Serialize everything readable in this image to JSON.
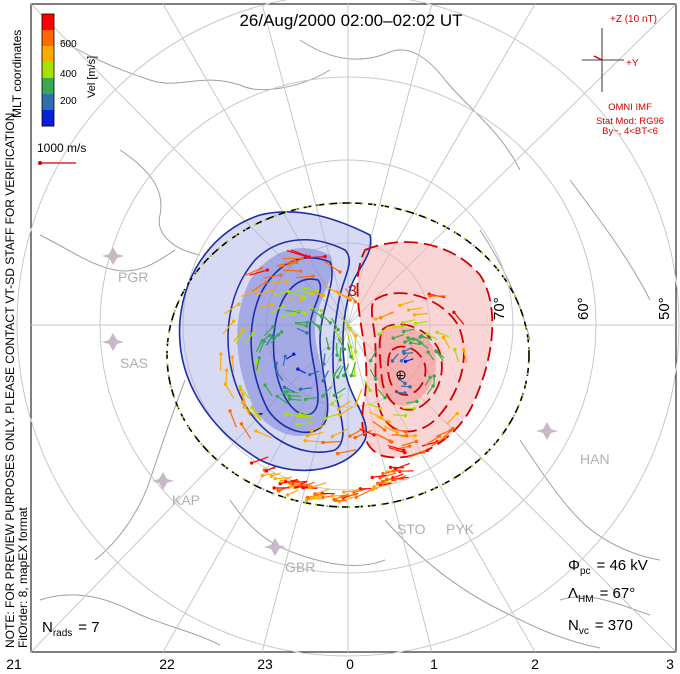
{
  "title": "26/Aug/2000 02:00–02:02 UT",
  "side_note": {
    "line1": "NOTE: FOR PREVIEW PURPOSES ONLY. PLEASE CONTACT VT-SD STAFF FOR VERIFICATION.",
    "line2": "FitOrder: 8, mapEX format"
  },
  "coord_label": "MLT coordinates",
  "colorbar": {
    "label": "Vel [m/s]",
    "ticks": [
      "600",
      "400",
      "200"
    ],
    "colors": [
      "#ff0000",
      "#ff6a00",
      "#ffaa00",
      "#a8e000",
      "#3aa84f",
      "#2f6fb0",
      "#0a1fd8"
    ]
  },
  "scale_vector_label": "1000 m/s",
  "imf": {
    "z_label": "+Z (10 nT)",
    "y_label": "+Y",
    "source": "OMNI IMF",
    "stat_mod": "Stat Mod: RG96",
    "condition": "By−, 4<BT<6",
    "color": "#d40000"
  },
  "lat_labels": [
    "70°",
    "60°",
    "50°"
  ],
  "stations": [
    "PGR",
    "SAS",
    "KAP",
    "GBR",
    "STO",
    "PYK",
    "HAN"
  ],
  "stats": {
    "phi_pc": {
      "sym": "Φ",
      "sub": "pc",
      "value": "= 46 kV"
    },
    "lambda_hm": {
      "sym": "Λ",
      "sub": "HM",
      "value": "= 67°"
    },
    "n_vc": {
      "sym": "N",
      "sub": "vc",
      "value": "= 370"
    },
    "n_rads": {
      "sym": "N",
      "sub": "rads",
      "value": "= 7"
    }
  },
  "mlt_ticks": [
    "21",
    "22",
    "23",
    "0",
    "1",
    "2",
    "3"
  ],
  "contours": {
    "neg_color": "#1c2fa8",
    "pos_color": "#d40000",
    "labels": [
      "3",
      "-"
    ]
  },
  "hmb_color": "#000000",
  "grid_color": "#c8c8c8",
  "coast_color": "#a0a0a0"
}
